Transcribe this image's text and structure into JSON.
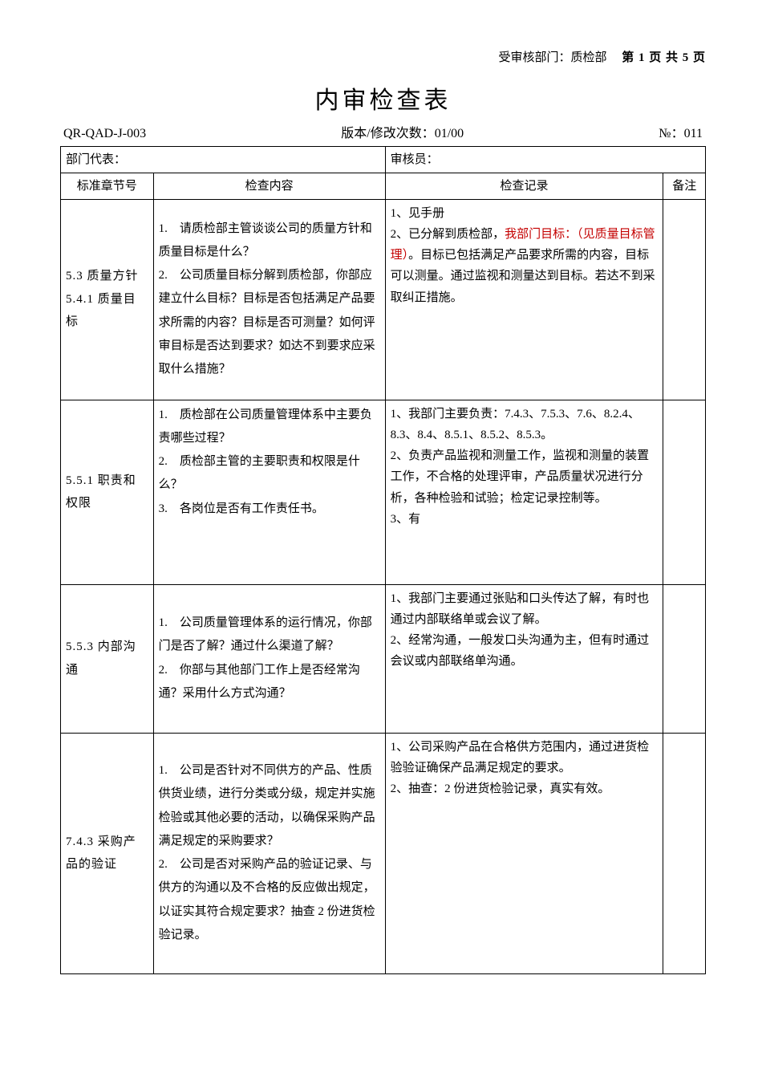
{
  "meta": {
    "dept_label": "受审核部门：",
    "dept_value": "质检部",
    "page_label": "第 1 页 共 5 页",
    "title": "内审检查表",
    "doc_no": "QR-QAD-J-003",
    "version_label": "版本/修改次数：",
    "version_value": "01/00",
    "seq_label": "№：",
    "seq_value": "011",
    "dept_rep_label": "部门代表：",
    "dept_rep_value": "",
    "auditor_label": "审核员：",
    "auditor_value": ""
  },
  "headers": {
    "clause": "标准章节号",
    "content": "检查内容",
    "record": "检查记录",
    "note": "备注"
  },
  "rows": [
    {
      "clause": "5.3 质量方针\n5.4.1 质量目标",
      "content": "1.　请质检部主管谈谈公司的质量方针和质量目标是什么？\n2.　公司质量目标分解到质检部，你部应建立什么目标？目标是否包括满足产品要求所需的内容？目标是否可测量？如何评审目标是否达到要求？如达不到要求应采　取什么措施？",
      "record_parts": [
        {
          "text": "1、见手册\n2、已分解到质检部，",
          "color": "#000000"
        },
        {
          "text": "我部门目标：（见质量目标管理）",
          "color": "#c40000"
        },
        {
          "text": "。目标已包括满足产品要求所需的内容，目标可以测量。通过监视和测量达到目标。若达不到采取纠正措施。",
          "color": "#000000"
        }
      ],
      "note": ""
    },
    {
      "clause": "5.5.1 职责和权限",
      "content": "1.　质检部在公司质量管理体系中主要负责哪些过程？\n2.　质检部主管的主要职责和权限是什么？\n3.　各岗位是否有工作责任书。",
      "record_parts": [
        {
          "text": "1、我部门主要负责：7.4.3、7.5.3、7.6、8.2.4、8.3、8.4、8.5.1、8.5.2、8.5.3。\n2、负责产品监视和测量工作，监视和测量的装置工作，不合格的处理评审，产品质量状况进行分析，各种检验和试验；检定记录控制等。\n3、有",
          "color": "#000000"
        }
      ],
      "note": ""
    },
    {
      "clause": "5.5.3 内部沟通",
      "content": "1.　公司质量管理体系的运行情况，你部门是否了解？通过什么渠道了解？\n2.　你部与其他部门工作上是否经常沟通？采用什么方式沟通？",
      "record_parts": [
        {
          "text": "1、我部门主要通过张贴和口头传达了解，有时也通过内部联络单或会议了解。\n2、经常沟通，一般发口头沟通为主，但有时通过会议或内部联络单沟通。",
          "color": "#000000"
        }
      ],
      "note": ""
    },
    {
      "clause": "7.4.3 采购产品的验证",
      "content": "1.　公司是否针对不同供方的产品、性质供货业绩，进行分类或分级，规定并实施检验或其他必要的活动，以确保采购产品满足规定的采购要求？\n2.　公司是否对采购产品的验证记录、与供方的沟通以及不合格的反应做出规定，以证实其符合规定要求？抽查 2 份进货检验记录。",
      "record_parts": [
        {
          "text": "1、公司采购产品在合格供方范围内，通过进货检验验证确保产品满足规定的要求。\n2、抽查：2 份进货检验记录，真实有效。",
          "color": "#000000"
        }
      ],
      "note": ""
    }
  ]
}
